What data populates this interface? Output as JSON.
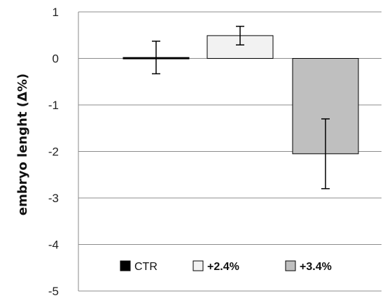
{
  "chart_data": {
    "type": "bar",
    "categories": [
      "CTR",
      "+2.4%",
      "+3.4%"
    ],
    "values": [
      0.02,
      0.49,
      -2.05
    ],
    "error": [
      0.35,
      0.2,
      0.75
    ],
    "colors": [
      "#000000",
      "#f2f2f2",
      "#bfbfbf"
    ],
    "title": "",
    "xlabel": "",
    "ylabel": "embryo lenght (Δ%)",
    "ylim": [
      -5,
      1
    ],
    "yticks": [
      "1",
      "0",
      "-1",
      "-2",
      "-3",
      "-4",
      "-5"
    ],
    "grid": true,
    "legend": {
      "placement": "bottom-inside",
      "entries": [
        "CTR",
        "+2.4%",
        "+3.4%"
      ]
    }
  }
}
